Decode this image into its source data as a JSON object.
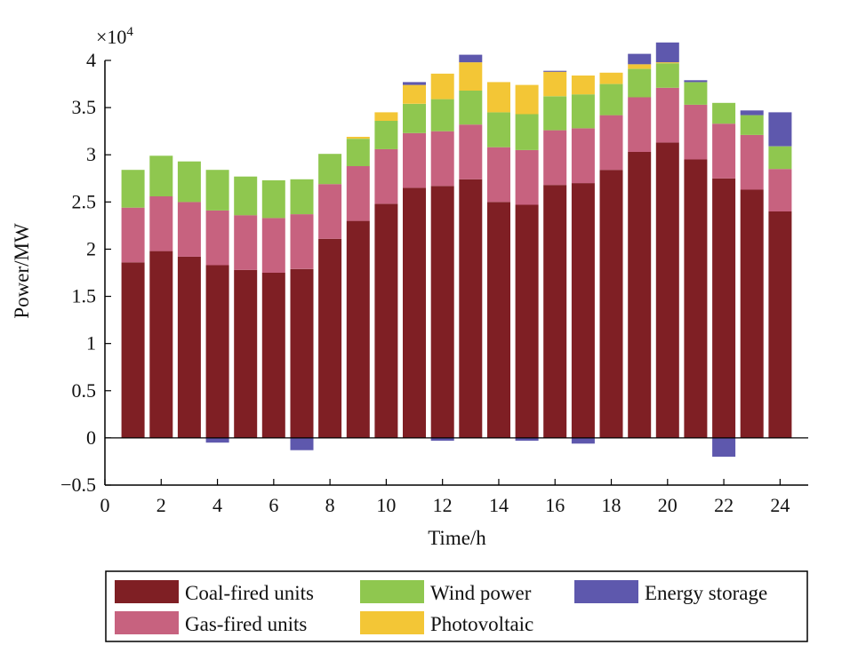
{
  "chart_data": {
    "type": "bar",
    "stacked": true,
    "xlabel": "Time/h",
    "ylabel": "Power/MW",
    "y_scale_label": "×10",
    "y_scale_exponent": "4",
    "xlim": [
      0,
      25
    ],
    "ylim": [
      -0.5,
      4
    ],
    "x_ticks": [
      0,
      2,
      4,
      6,
      8,
      10,
      12,
      14,
      16,
      18,
      20,
      22,
      24
    ],
    "x_tick_labels": [
      "0",
      "2",
      "4",
      "6",
      "8",
      "10",
      "12",
      "14",
      "16",
      "18",
      "20",
      "22",
      "24"
    ],
    "y_ticks": [
      -0.5,
      0,
      0.5,
      1,
      1.5,
      2,
      2.5,
      3,
      3.5,
      4
    ],
    "y_tick_labels": [
      "−0.5",
      "0",
      "0.5",
      "1",
      "1.5",
      "2",
      "2.5",
      "3",
      "3.5",
      "4"
    ],
    "x": [
      1,
      2,
      3,
      4,
      5,
      6,
      7,
      8,
      9,
      10,
      11,
      12,
      13,
      14,
      15,
      16,
      17,
      18,
      19,
      20,
      21,
      22,
      23,
      24
    ],
    "series": [
      {
        "name": "Coal-fired units",
        "color": "#7f1f24",
        "values": [
          1.86,
          1.98,
          1.92,
          1.83,
          1.78,
          1.75,
          1.79,
          2.11,
          2.3,
          2.48,
          2.65,
          2.67,
          2.74,
          2.5,
          2.47,
          2.68,
          2.7,
          2.84,
          3.03,
          3.13,
          2.95,
          2.75,
          2.63,
          2.4
        ]
      },
      {
        "name": "Gas-fired units",
        "color": "#c7627f",
        "values": [
          0.58,
          0.58,
          0.58,
          0.58,
          0.58,
          0.58,
          0.58,
          0.58,
          0.58,
          0.58,
          0.58,
          0.58,
          0.58,
          0.58,
          0.58,
          0.58,
          0.58,
          0.58,
          0.58,
          0.58,
          0.58,
          0.58,
          0.58,
          0.45
        ]
      },
      {
        "name": "Wind power",
        "color": "#8fc74f",
        "values": [
          0.4,
          0.43,
          0.43,
          0.43,
          0.41,
          0.4,
          0.37,
          0.32,
          0.29,
          0.3,
          0.31,
          0.34,
          0.36,
          0.37,
          0.38,
          0.36,
          0.36,
          0.33,
          0.3,
          0.26,
          0.24,
          0.22,
          0.21,
          0.24
        ]
      },
      {
        "name": "Photovoltaic",
        "color": "#f3c636",
        "values": [
          0,
          0,
          0,
          0,
          0,
          0,
          0,
          0,
          0.02,
          0.09,
          0.2,
          0.27,
          0.3,
          0.32,
          0.31,
          0.26,
          0.2,
          0.12,
          0.05,
          0.01,
          0,
          0,
          0,
          0
        ]
      },
      {
        "name": "Energy storage",
        "color": "#5e58ad",
        "values": [
          0,
          0,
          0,
          -0.05,
          0,
          0,
          -0.13,
          0,
          0,
          0,
          0.03,
          -0.03,
          0.08,
          0,
          -0.03,
          0.01,
          -0.06,
          0,
          0.11,
          0.21,
          0.02,
          -0.2,
          0.05,
          0.36
        ]
      }
    ],
    "legend": {
      "placement": "bottom",
      "entries": [
        "Coal-fired units",
        "Wind power",
        "Energy storage",
        "Gas-fired units",
        "Photovoltaic"
      ]
    }
  }
}
